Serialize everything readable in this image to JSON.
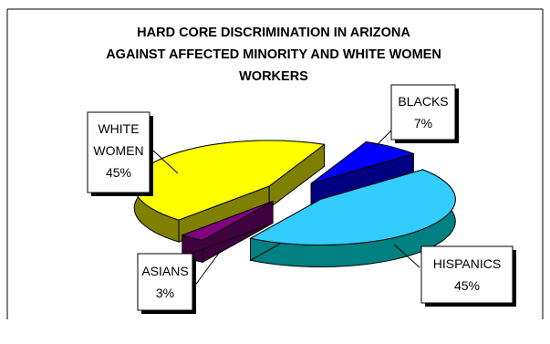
{
  "chart_data": {
    "type": "pie",
    "title_lines": [
      "HARD CORE DISCRIMINATION IN ARIZONA",
      "AGAINST AFFECTED MINORITY AND WHITE WOMEN",
      "WORKERS"
    ],
    "slices": [
      {
        "label_lines": [
          "BLACKS",
          "7%"
        ],
        "value": 7,
        "color": "#0000ff",
        "side_color": "#000080"
      },
      {
        "label_lines": [
          "HISPANICS",
          "45%"
        ],
        "value": 45,
        "color": "#33ccff",
        "side_color": "#008080"
      },
      {
        "label_lines": [
          "ASIANS",
          "3%"
        ],
        "value": 3,
        "color": "#800080",
        "side_color": "#400040"
      },
      {
        "label_lines": [
          "WHITE",
          "WOMEN",
          "45%"
        ],
        "value": 45,
        "color": "#ffff00",
        "side_color": "#808000"
      }
    ],
    "view": "3d-exploded",
    "legend": "none"
  }
}
